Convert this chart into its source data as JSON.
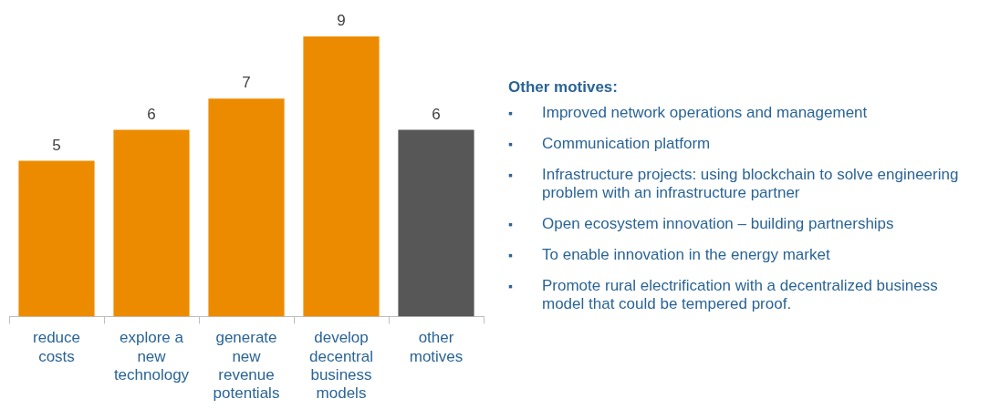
{
  "chart_data": {
    "type": "bar",
    "categories": [
      "reduce costs",
      "explore a new technology",
      "generate new revenue potentials",
      "develop decentral business models",
      "other motives"
    ],
    "values": [
      5,
      6,
      7,
      9,
      6
    ],
    "colors": [
      "#ed8b00",
      "#ed8b00",
      "#ed8b00",
      "#ed8b00",
      "#575757"
    ],
    "data_labels": true,
    "grid": false,
    "legend": false,
    "tick_labels": "x",
    "annotations": [
      "Other motives:",
      "▪ Improved network operations and management",
      "▪ Communication platform",
      "▪ Infrastructure projects: using blockchain to solve engineering problem with an infrastructure partner",
      "▪ Open ecosystem innovation – building partnerships",
      "▪ To enable innovation in the energy market",
      "▪ Promote rural electrification with a decentralized business model that could be tempered proof."
    ]
  }
}
